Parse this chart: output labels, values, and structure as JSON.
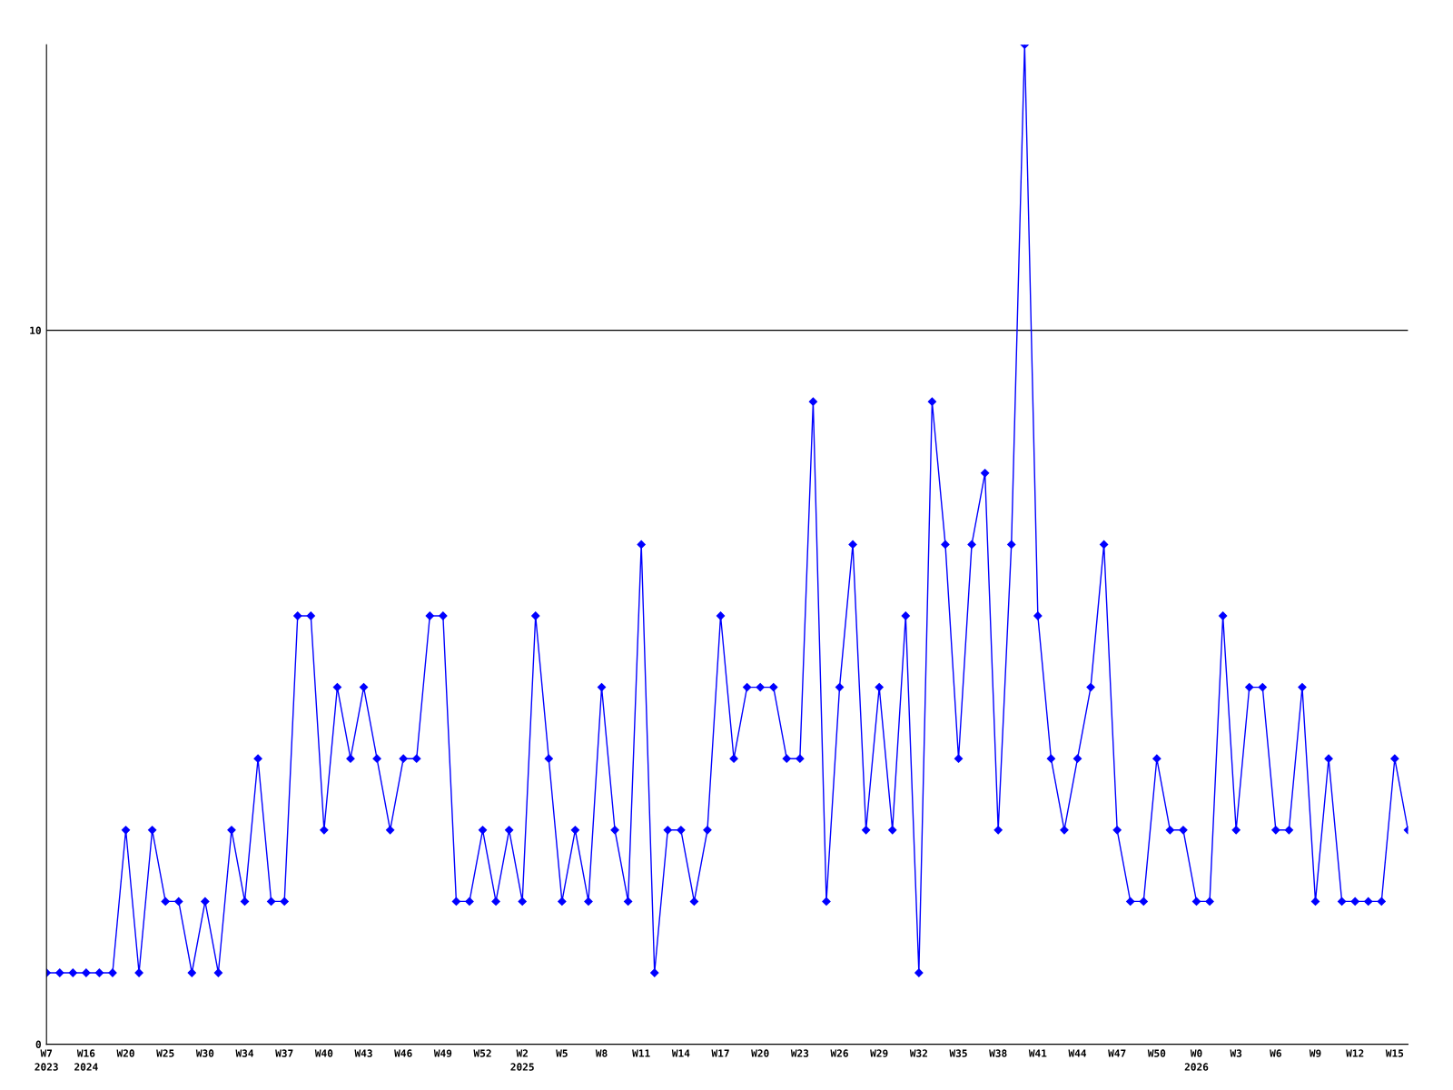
{
  "chart_data": {
    "type": "line",
    "categories": [
      "W7\n2023",
      null,
      null,
      "W16\n2024",
      null,
      null,
      "W20",
      null,
      null,
      "W25",
      null,
      null,
      "W30",
      null,
      null,
      "W34",
      null,
      null,
      "W37",
      null,
      null,
      "W40",
      null,
      null,
      "W43",
      null,
      null,
      "W46",
      null,
      null,
      "W49",
      null,
      null,
      "W52",
      null,
      null,
      "W2\n2025",
      null,
      null,
      "W5",
      null,
      null,
      "W8",
      null,
      null,
      "W11",
      null,
      null,
      "W14",
      null,
      null,
      "W17",
      null,
      null,
      "W20",
      null,
      null,
      "W23",
      null,
      null,
      "W26",
      null,
      null,
      "W29",
      null,
      null,
      "W32",
      null,
      null,
      "W35",
      null,
      null,
      "W38",
      null,
      null,
      "W41",
      null,
      null,
      "W44",
      null,
      null,
      "W47",
      null,
      null,
      "W50",
      null,
      null,
      "W0\n2026",
      null,
      null,
      "W3",
      null,
      null,
      "W6",
      null,
      null,
      "W9",
      null,
      null,
      "W12",
      null,
      null,
      "W15",
      null
    ],
    "series": [
      {
        "color": "#0000ff",
        "values": [
          1,
          1,
          1,
          1,
          1,
          1,
          3,
          1,
          3,
          2,
          2,
          1,
          2,
          1,
          3,
          2,
          4,
          2,
          2,
          6,
          6,
          3,
          5,
          4,
          5,
          4,
          3,
          4,
          4,
          6,
          6,
          2,
          2,
          3,
          2,
          3,
          2,
          6,
          4,
          2,
          3,
          2,
          5,
          3,
          2,
          7,
          1,
          3,
          3,
          2,
          3,
          6,
          4,
          5,
          5,
          5,
          4,
          4,
          9,
          2,
          5,
          7,
          3,
          5,
          3,
          6,
          1,
          9,
          7,
          4,
          7,
          8,
          3,
          7,
          14,
          6,
          4,
          3,
          4,
          5,
          7,
          3,
          2,
          2,
          4,
          3,
          3,
          2,
          2,
          6,
          3,
          5,
          5,
          3,
          3,
          5,
          2,
          4,
          2,
          2,
          2,
          2,
          4,
          3
        ]
      }
    ],
    "ylim": [
      0,
      14
    ],
    "yticks": [
      0,
      10
    ],
    "grid": "y",
    "marker": "diamond",
    "line_style": "solid",
    "legend": false
  }
}
